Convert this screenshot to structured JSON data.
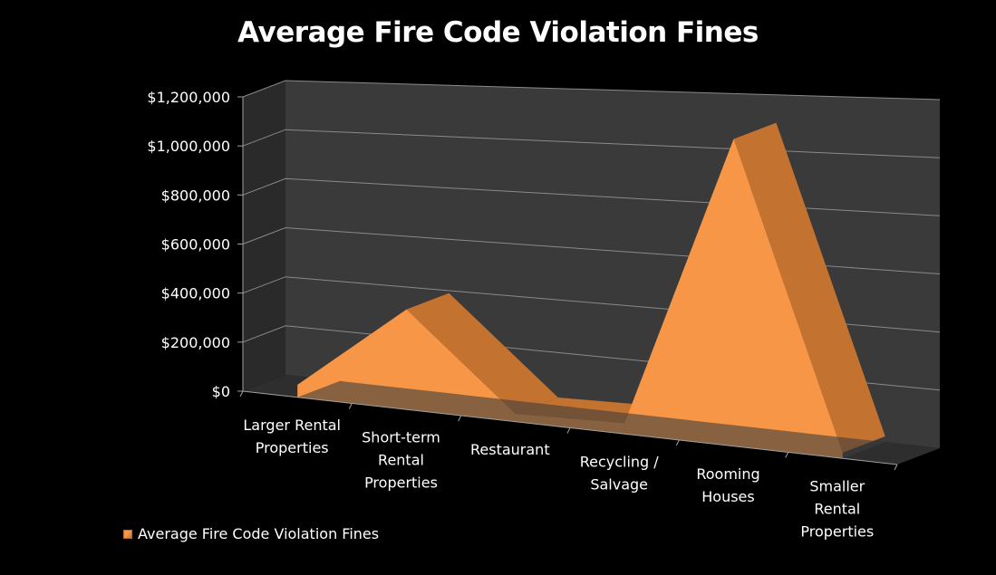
{
  "chart_data": {
    "type": "area",
    "title": "Average Fire Code Violation Fines",
    "categories": [
      [
        "Larger Rental",
        "Properties"
      ],
      [
        "Short-term",
        "Rental",
        "Properties"
      ],
      [
        "Restaurant"
      ],
      [
        "Recycling /",
        "Salvage"
      ],
      [
        "Rooming",
        "Houses"
      ],
      [
        "Smaller",
        "Rental",
        "Properties"
      ]
    ],
    "series": [
      {
        "name": "Average Fire Code Violation Fines",
        "values": [
          50000,
          390000,
          30000,
          40000,
          1100000,
          20000
        ],
        "color": "#f79646",
        "side_color": "#c4722f"
      }
    ],
    "ylim": [
      0,
      1200000
    ],
    "yticks": [
      "$0",
      "$200,000",
      "$400,000",
      "$600,000",
      "$800,000",
      "$1,000,000",
      "$1,200,000"
    ],
    "grid": true,
    "legend_position": "bottom-left",
    "wall_color": "#3a3a3a",
    "floor_color": "#2e2e2e"
  }
}
